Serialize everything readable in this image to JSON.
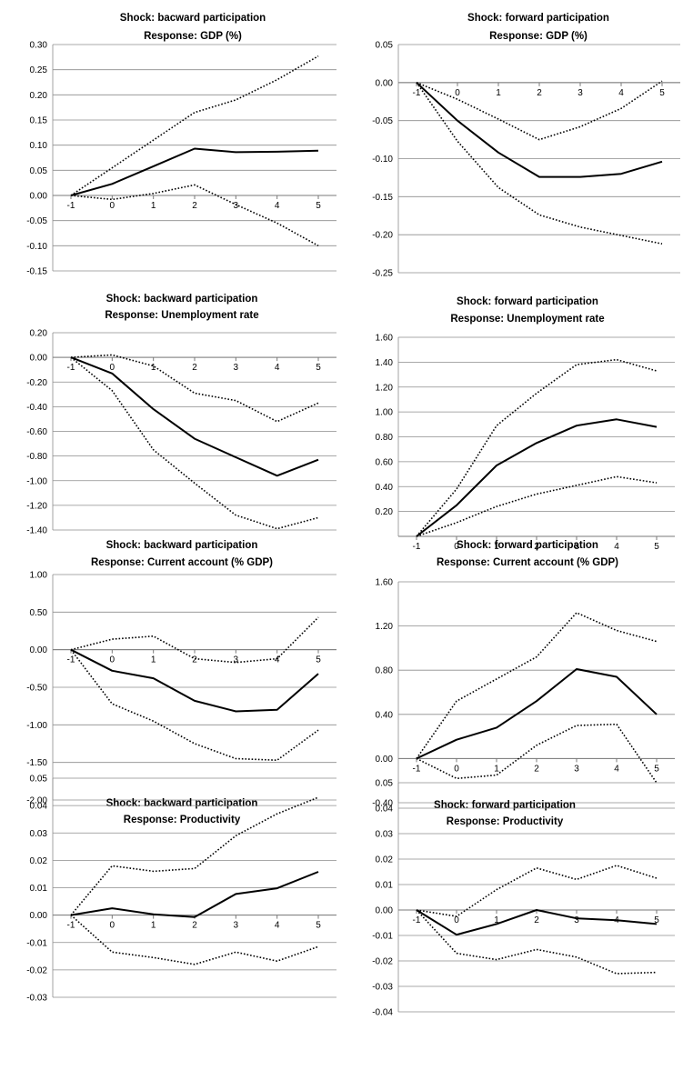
{
  "chart_data": [
    {
      "type": "line",
      "title": "Shock: bacward participation",
      "subtitle": "Response: GDP (%)",
      "x": [
        -1,
        0,
        1,
        2,
        3,
        4,
        5
      ],
      "ylim": [
        -0.15,
        0.3
      ],
      "yticks": [
        0.3,
        0.25,
        0.2,
        0.15,
        0.1,
        0.05,
        0.0,
        -0.05,
        -0.1,
        -0.15
      ],
      "decimals": 2,
      "grid": true,
      "series": [
        {
          "style": "solid",
          "values": [
            0.0,
            0.023,
            0.058,
            0.093,
            0.086,
            0.087,
            0.089
          ]
        },
        {
          "style": "dotted",
          "values": [
            0.0,
            0.055,
            0.11,
            0.165,
            0.19,
            0.23,
            0.277
          ]
        },
        {
          "style": "dotted",
          "values": [
            0.0,
            -0.008,
            0.004,
            0.021,
            -0.018,
            -0.055,
            -0.1
          ]
        }
      ]
    },
    {
      "type": "line",
      "title": "Shock: forward participation",
      "subtitle": "Response: GDP (%)",
      "x": [
        -1,
        0,
        1,
        2,
        3,
        4,
        5
      ],
      "ylim": [
        -0.25,
        0.05
      ],
      "yticks": [
        0.05,
        0.0,
        -0.05,
        -0.1,
        -0.15,
        -0.2,
        -0.25
      ],
      "decimals": 2,
      "grid": true,
      "series": [
        {
          "style": "solid",
          "values": [
            0.0,
            -0.05,
            -0.092,
            -0.124,
            -0.124,
            -0.12,
            -0.104
          ]
        },
        {
          "style": "dotted",
          "values": [
            0.0,
            -0.022,
            -0.048,
            -0.075,
            -0.058,
            -0.034,
            0.002
          ]
        },
        {
          "style": "dotted",
          "values": [
            0.0,
            -0.077,
            -0.138,
            -0.174,
            -0.19,
            -0.201,
            -0.212
          ]
        }
      ]
    },
    {
      "type": "line",
      "title": "Shock: backward participation",
      "subtitle": "Response: Unemployment rate",
      "x": [
        -1,
        0,
        1,
        2,
        3,
        4,
        5
      ],
      "ylim": [
        -1.4,
        0.2
      ],
      "yticks": [
        0.2,
        0.0,
        -0.2,
        -0.4,
        -0.6,
        -0.8,
        -1.0,
        -1.2,
        -1.4
      ],
      "decimals": 2,
      "grid": true,
      "series": [
        {
          "style": "solid",
          "values": [
            0.0,
            -0.13,
            -0.42,
            -0.66,
            -0.81,
            -0.96,
            -0.83
          ]
        },
        {
          "style": "dotted",
          "values": [
            0.0,
            0.02,
            -0.07,
            -0.29,
            -0.35,
            -0.52,
            -0.37
          ]
        },
        {
          "style": "dotted",
          "values": [
            0.0,
            -0.27,
            -0.75,
            -1.02,
            -1.28,
            -1.39,
            -1.3
          ]
        }
      ]
    },
    {
      "type": "line",
      "title": "Shock: forward participation",
      "subtitle": "Response: Unemployment rate",
      "x": [
        -1,
        0,
        1,
        2,
        3,
        4,
        5
      ],
      "ylim": [
        0.0,
        1.6
      ],
      "yticks": [
        1.6,
        1.4,
        1.2,
        1.0,
        0.8,
        0.6,
        0.4,
        0.2
      ],
      "decimals": 2,
      "grid": true,
      "series": [
        {
          "style": "solid",
          "values": [
            0.0,
            0.25,
            0.57,
            0.75,
            0.89,
            0.94,
            0.88
          ]
        },
        {
          "style": "dotted",
          "values": [
            0.0,
            0.38,
            0.89,
            1.15,
            1.38,
            1.42,
            1.33
          ]
        },
        {
          "style": "dotted",
          "values": [
            0.0,
            0.11,
            0.24,
            0.34,
            0.41,
            0.48,
            0.43
          ]
        }
      ]
    },
    {
      "type": "line",
      "title": "Shock: backward participation",
      "subtitle": "Response: Current account (% GDP)",
      "x": [
        -1,
        0,
        1,
        2,
        3,
        4,
        5
      ],
      "ylim": [
        -2.0,
        1.0
      ],
      "yticks": [
        1.0,
        0.5,
        0.0,
        -0.5,
        -1.0,
        -1.5,
        -2.0
      ],
      "decimals": 2,
      "grid": true,
      "series": [
        {
          "style": "solid",
          "values": [
            0.0,
            -0.28,
            -0.38,
            -0.68,
            -0.82,
            -0.8,
            -0.32
          ]
        },
        {
          "style": "dotted",
          "values": [
            0.0,
            0.14,
            0.18,
            -0.12,
            -0.17,
            -0.12,
            0.43
          ]
        },
        {
          "style": "dotted",
          "values": [
            0.0,
            -0.72,
            -0.95,
            -1.25,
            -1.45,
            -1.47,
            -1.07
          ]
        }
      ]
    },
    {
      "type": "line",
      "title": "Shock: forward participation",
      "subtitle": "Response: Current account (% GDP)",
      "x": [
        -1,
        0,
        1,
        2,
        3,
        4,
        5
      ],
      "ylim": [
        -0.4,
        1.6
      ],
      "yticks": [
        1.6,
        1.2,
        0.8,
        0.4,
        0.0,
        -0.4
      ],
      "decimals": 2,
      "grid": true,
      "series": [
        {
          "style": "solid",
          "values": [
            0.0,
            0.17,
            0.28,
            0.52,
            0.81,
            0.74,
            0.4
          ]
        },
        {
          "style": "dotted",
          "values": [
            0.0,
            0.52,
            0.72,
            0.92,
            1.32,
            1.16,
            1.06
          ]
        },
        {
          "style": "dotted",
          "values": [
            0.0,
            -0.18,
            -0.15,
            0.12,
            0.3,
            0.31,
            -0.22
          ]
        }
      ]
    },
    {
      "type": "line",
      "title": "Shock: backward participation",
      "subtitle": "Response: Productivity",
      "x": [
        -1,
        0,
        1,
        2,
        3,
        4,
        5
      ],
      "ylim": [
        -0.03,
        0.05
      ],
      "yticks": [
        0.05,
        0.04,
        0.03,
        0.02,
        0.01,
        0.0,
        -0.01,
        -0.02,
        -0.03
      ],
      "decimals": 2,
      "grid": true,
      "series": [
        {
          "style": "solid",
          "values": [
            0.0,
            0.0025,
            0.0003,
            -0.0007,
            0.0077,
            0.0098,
            0.0158
          ]
        },
        {
          "style": "dotted",
          "values": [
            0.0,
            0.018,
            0.016,
            0.017,
            0.029,
            0.037,
            0.043
          ]
        },
        {
          "style": "dotted",
          "values": [
            0.0,
            -0.0135,
            -0.0155,
            -0.018,
            -0.0135,
            -0.0168,
            -0.0115
          ]
        }
      ]
    },
    {
      "type": "line",
      "title": "Shock: forward participation",
      "subtitle": "Response: Productivity",
      "x": [
        -1,
        0,
        1,
        2,
        3,
        4,
        5
      ],
      "ylim": [
        -0.04,
        0.05
      ],
      "yticks": [
        0.05,
        0.04,
        0.03,
        0.02,
        0.01,
        0.0,
        -0.01,
        -0.02,
        -0.03,
        -0.04
      ],
      "decimals": 2,
      "grid": true,
      "series": [
        {
          "style": "solid",
          "values": [
            0.0,
            -0.0097,
            -0.0055,
            0.0,
            -0.0033,
            -0.004,
            -0.0055
          ]
        },
        {
          "style": "dotted",
          "values": [
            0.0,
            -0.0025,
            0.008,
            0.0165,
            0.012,
            0.0175,
            0.0125
          ]
        },
        {
          "style": "dotted",
          "values": [
            0.0,
            -0.017,
            -0.0195,
            -0.0155,
            -0.0185,
            -0.025,
            -0.0245
          ]
        }
      ]
    }
  ]
}
